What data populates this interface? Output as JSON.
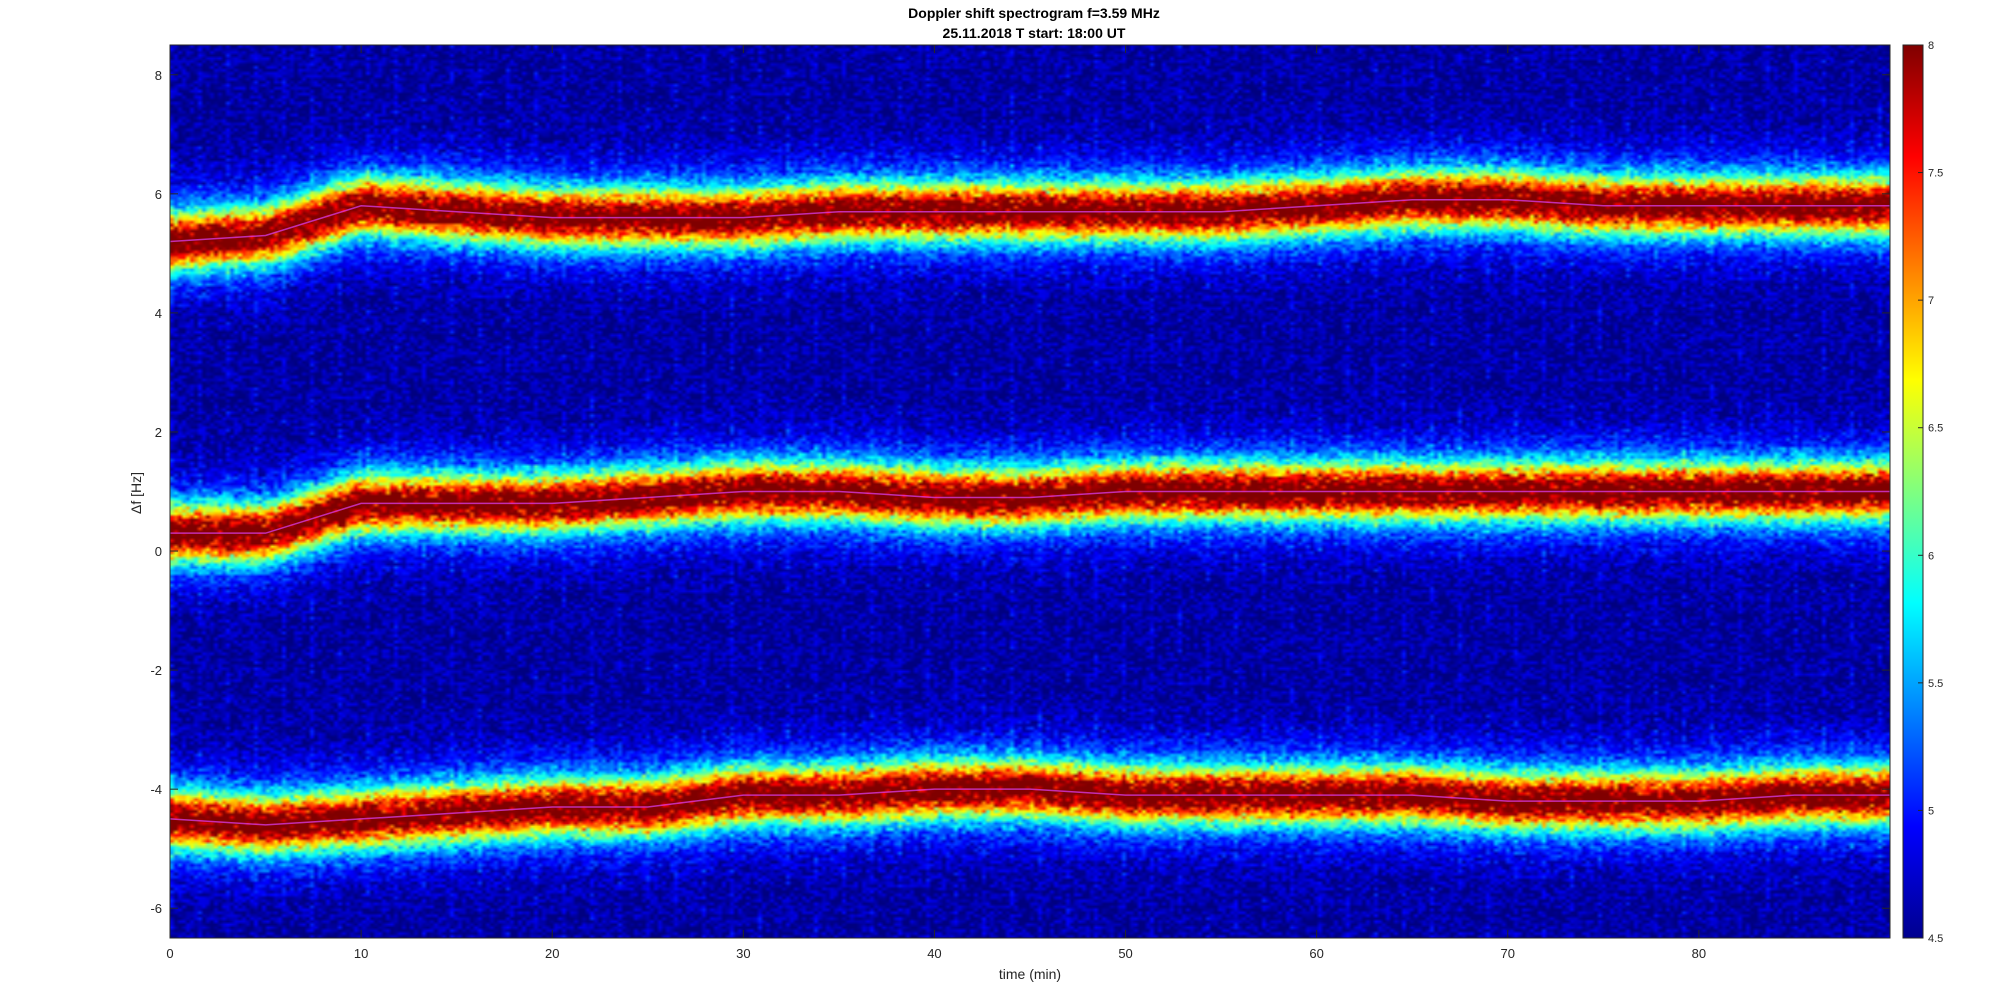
{
  "chart_data": {
    "type": "heatmap",
    "title": "Doppler shift spectrogram f=3.59 MHz",
    "subtitle": "25.11.2018    T start: 18:00 UT",
    "xlabel": "time (min)",
    "ylabel": "Δf [Hz]",
    "xlim": [
      0,
      90
    ],
    "ylim": [
      -6.5,
      8.5
    ],
    "x_ticks": [
      0,
      10,
      20,
      30,
      40,
      50,
      60,
      70,
      80
    ],
    "y_ticks": [
      -6,
      -4,
      -2,
      0,
      2,
      4,
      6,
      8
    ],
    "colorbar": {
      "colormap": "jet",
      "clim": [
        4.5,
        8
      ],
      "ticks": [
        4.5,
        5,
        5.5,
        6,
        6.5,
        7,
        7.5,
        8
      ],
      "placement": "right"
    },
    "background_level": 4.6,
    "bands": [
      {
        "x": [
          0,
          5,
          10,
          15,
          20,
          25,
          30,
          35,
          40,
          45,
          50,
          55,
          60,
          65,
          70,
          75,
          80,
          85,
          90
        ],
        "y": [
          5.2,
          5.3,
          5.8,
          5.7,
          5.6,
          5.6,
          5.6,
          5.7,
          5.7,
          5.7,
          5.7,
          5.7,
          5.8,
          5.9,
          5.9,
          5.8,
          5.8,
          5.8,
          5.8
        ]
      },
      {
        "x": [
          0,
          5,
          10,
          15,
          20,
          25,
          30,
          35,
          40,
          45,
          50,
          55,
          60,
          65,
          70,
          75,
          80,
          85,
          90
        ],
        "y": [
          0.3,
          0.3,
          0.8,
          0.8,
          0.8,
          0.9,
          1.0,
          1.0,
          0.9,
          0.9,
          1.0,
          1.0,
          1.0,
          1.0,
          1.0,
          1.0,
          1.0,
          1.0,
          1.0
        ]
      },
      {
        "x": [
          0,
          5,
          10,
          15,
          20,
          25,
          30,
          35,
          40,
          45,
          50,
          55,
          60,
          65,
          70,
          75,
          80,
          85,
          90
        ],
        "y": [
          -4.5,
          -4.6,
          -4.5,
          -4.4,
          -4.3,
          -4.3,
          -4.1,
          -4.1,
          -4.0,
          -4.0,
          -4.1,
          -4.1,
          -4.1,
          -4.1,
          -4.2,
          -4.2,
          -4.2,
          -4.1,
          -4.1
        ]
      }
    ]
  }
}
